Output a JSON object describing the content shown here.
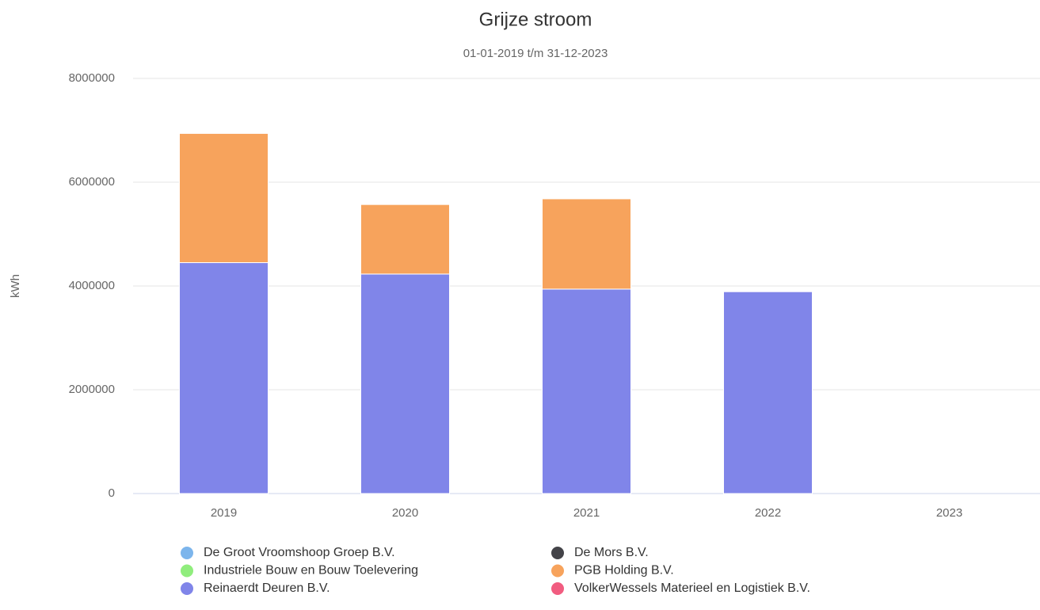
{
  "chart_data": {
    "type": "stacked_bar",
    "title": "Grijze stroom",
    "subtitle": "01-01-2019 t/m 31-12-2023",
    "y_label": "kWh",
    "categories": [
      "2019",
      "2020",
      "2021",
      "2022",
      "2023"
    ],
    "series": [
      {
        "name": "De Groot Vroomshoop Groep B.V.",
        "color": "#7cb5ec",
        "values": [
          0,
          0,
          0,
          0,
          0
        ]
      },
      {
        "name": "De Mors B.V.",
        "color": "#434348",
        "values": [
          0,
          0,
          0,
          0,
          0
        ]
      },
      {
        "name": "Industriele Bouw en Bouw Toelevering",
        "color": "#90ed7d",
        "values": [
          0,
          0,
          0,
          0,
          0
        ]
      },
      {
        "name": "PGB Holding B.V.",
        "color": "#f7a35c",
        "values": [
          2490000,
          1340000,
          1740000,
          0,
          0
        ]
      },
      {
        "name": "Reinaerdt Deuren B.V.",
        "color": "#8085e9",
        "values": [
          4450000,
          4230000,
          3940000,
          3890000,
          0
        ]
      },
      {
        "name": "VolkerWessels Materieel en Logistiek B.V.",
        "color": "#f15c80",
        "values": [
          0,
          0,
          0,
          0,
          0
        ]
      }
    ],
    "ylim": [
      0,
      8000000
    ],
    "yticks": [
      0,
      2000000,
      4000000,
      6000000,
      8000000
    ],
    "grid": true
  }
}
